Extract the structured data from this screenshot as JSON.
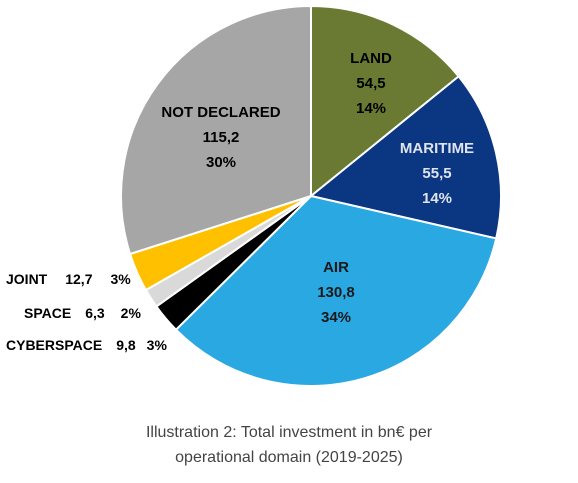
{
  "chart_data": {
    "type": "pie",
    "start_angle_deg": 0,
    "slices": [
      {
        "label": "LAND",
        "value": 54.5,
        "value_text": "54,5",
        "percent_text": "14%",
        "color": "#6a7a32",
        "text_color": "#000000"
      },
      {
        "label": "MARITIME",
        "value": 55.5,
        "value_text": "55,5",
        "percent_text": "14%",
        "color": "#0b3682",
        "text_color": "#dfe4ee"
      },
      {
        "label": "AIR",
        "value": 130.8,
        "value_text": "130,8",
        "percent_text": "34%",
        "color": "#29a8e2",
        "text_color": "#1a1a1a"
      },
      {
        "label": "CYBERSPACE",
        "value": 9.8,
        "value_text": "9,8",
        "percent_text": "3%",
        "color": "#000000",
        "text_color": "#000000"
      },
      {
        "label": "SPACE",
        "value": 6.3,
        "value_text": "6,3",
        "percent_text": "2%",
        "color": "#d9d9d9",
        "text_color": "#000000"
      },
      {
        "label": "JOINT",
        "value": 12.7,
        "value_text": "12,7",
        "percent_text": "3%",
        "color": "#ffc000",
        "text_color": "#000000"
      },
      {
        "label": "NOT DECLARED",
        "value": 115.2,
        "value_text": "115,2",
        "percent_text": "30%",
        "color": "#a6a6a6",
        "text_color": "#000000"
      }
    ]
  },
  "caption": {
    "line1": "Illustration 2: Total investment in bn€ per",
    "line2": "operational domain (2019-2025)"
  }
}
